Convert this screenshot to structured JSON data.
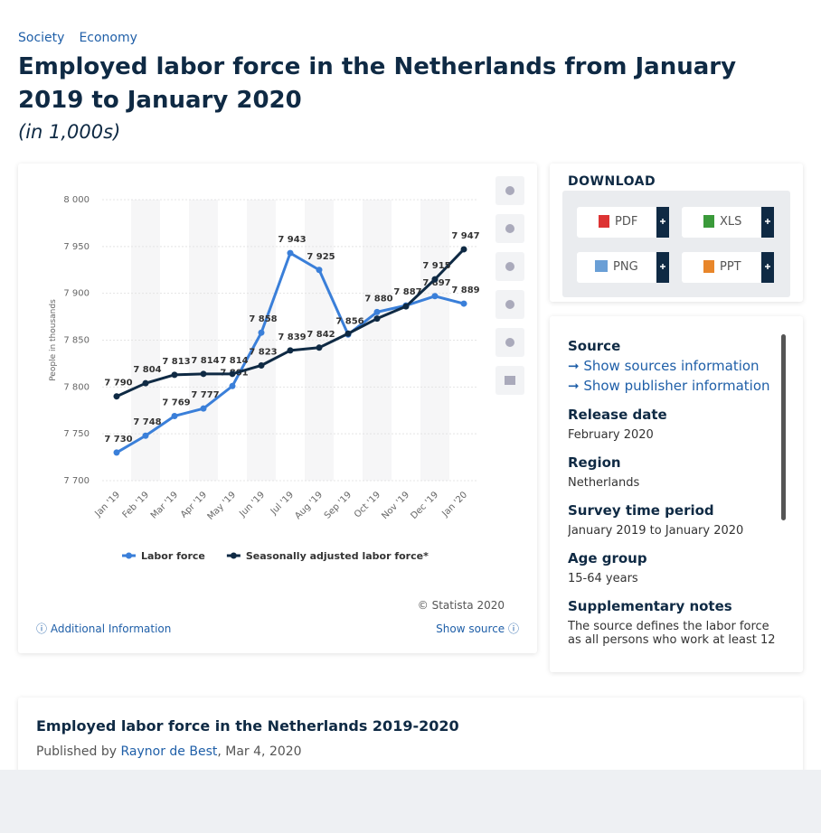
{
  "breadcrumb": [
    "Society",
    "Economy"
  ],
  "header": {
    "title": "Employed labor force in the Netherlands from January 2019 to January 2020",
    "subtitle": "(in 1,000s)"
  },
  "chart_data": {
    "type": "line",
    "categories": [
      "Jan '19",
      "Feb '19",
      "Mar '19",
      "Apr '19",
      "May '19",
      "Jun '19",
      "Jul '19",
      "Aug '19",
      "Sep '19",
      "Oct '19",
      "Nov '19",
      "Dec '19",
      "Jan '20"
    ],
    "series": [
      {
        "name": "Labor force",
        "color": "#3a7fd9",
        "values": [
          7730,
          7748,
          7769,
          7777,
          7801,
          7858,
          7943,
          7925,
          7856,
          7880,
          7887,
          7897,
          7889
        ],
        "value_labels": [
          "7 730",
          "7 748",
          "7 769",
          "7 777",
          "7 801",
          "7 858",
          "7 943",
          "7 925",
          "7 856",
          "7 880",
          "7 887",
          "7 897",
          "7 889"
        ]
      },
      {
        "name": "Seasonally adjusted labor force*",
        "color": "#0f2a44",
        "values": [
          7790,
          7804,
          7813,
          7814,
          7814,
          7823,
          7839,
          7842,
          7857,
          7873,
          7886,
          7915,
          7947
        ],
        "value_labels": [
          "7 790",
          "7 804",
          "7 813",
          "7 814",
          "7 814",
          "7 823",
          "7 839",
          "7 842",
          null,
          null,
          null,
          "7 915",
          "7 947"
        ]
      }
    ],
    "ylim": [
      7700,
      8000
    ],
    "yticks": [
      {
        "value": 7700,
        "label": "7 700"
      },
      {
        "value": 7750,
        "label": "7 750"
      },
      {
        "value": 7800,
        "label": "7 800"
      },
      {
        "value": 7850,
        "label": "7 850"
      },
      {
        "value": 7900,
        "label": "7 900"
      },
      {
        "value": 7950,
        "label": "7 950"
      },
      {
        "value": 8000,
        "label": "8 000"
      }
    ],
    "ylabel": "People in thousands",
    "grid": true,
    "legend": "bottom"
  },
  "chart_footer": {
    "copyright": "© Statista 2020",
    "additional_info": "Additional Information",
    "show_source": "Show source"
  },
  "download": {
    "heading": "DOWNLOAD",
    "buttons": [
      "PDF",
      "XLS",
      "PNG",
      "PPT"
    ]
  },
  "info": {
    "source": {
      "label": "Source",
      "links": [
        "Show sources information",
        "Show publisher information"
      ]
    },
    "details": [
      {
        "label": "Release date",
        "value": "February 2020"
      },
      {
        "label": "Region",
        "value": "Netherlands"
      },
      {
        "label": "Survey time period",
        "value": "January 2019 to January 2020"
      },
      {
        "label": "Age group",
        "value": "15-64 years"
      },
      {
        "label": "Supplementary notes",
        "value": "The source defines the labor force as all persons who work at least 12"
      }
    ]
  },
  "article": {
    "title": "Employed labor force in the Netherlands 2019-2020",
    "published_by": "Published by",
    "author": "Raynor de Best",
    "date": ", Mar 4, 2020"
  }
}
